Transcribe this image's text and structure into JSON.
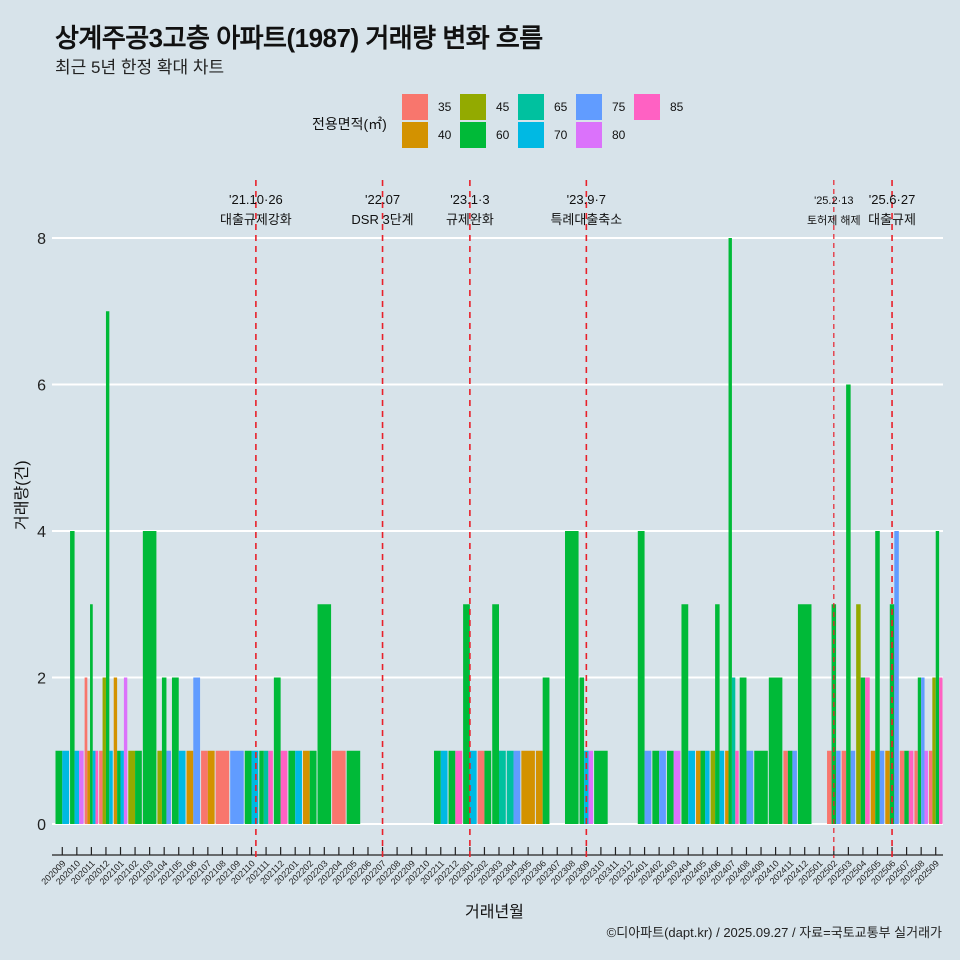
{
  "header": {
    "title": "상계주공3고층 아파트(1987) 거래량 변화 흐름",
    "subtitle": "최근 5년 한정 확대 차트"
  },
  "legend": {
    "title": "전용면적(㎡)",
    "items": [
      {
        "label": "35",
        "color": "#F8766D"
      },
      {
        "label": "40",
        "color": "#D39200"
      },
      {
        "label": "45",
        "color": "#93AA00"
      },
      {
        "label": "60",
        "color": "#00BA38"
      },
      {
        "label": "65",
        "color": "#00C19F"
      },
      {
        "label": "70",
        "color": "#00B9E3"
      },
      {
        "label": "75",
        "color": "#619CFF"
      },
      {
        "label": "80",
        "color": "#DB72FB"
      },
      {
        "label": "85",
        "color": "#FF61C3"
      }
    ]
  },
  "caption": "©디아파트(dapt.kr) / 2025.09.27 / 자료=국토교통부 실거래가",
  "chart_data": {
    "type": "bar",
    "title": "상계주공3고층 아파트(1987) 거래량 변화 흐름",
    "subtitle": "최근 5년 한정 확대 차트",
    "xlabel": "거래년월",
    "ylabel": "거래량(건)",
    "ylim": [
      0,
      8
    ],
    "yticks": [
      "0",
      "2",
      "4",
      "6",
      "8"
    ],
    "grid": true,
    "legend_position": "top",
    "categories": [
      "202009",
      "202010",
      "202011",
      "202012",
      "202101",
      "202102",
      "202103",
      "202104",
      "202105",
      "202106",
      "202107",
      "202108",
      "202109",
      "202110",
      "202111",
      "202112",
      "202201",
      "202202",
      "202203",
      "202204",
      "202205",
      "202206",
      "202207",
      "202208",
      "202209",
      "202210",
      "202211",
      "202212",
      "202301",
      "202302",
      "202303",
      "202304",
      "202305",
      "202306",
      "202307",
      "202308",
      "202309",
      "202310",
      "202311",
      "202312",
      "202401",
      "202402",
      "202403",
      "202404",
      "202405",
      "202406",
      "202407",
      "202408",
      "202409",
      "202410",
      "202411",
      "202412",
      "202501",
      "202502",
      "202503",
      "202504",
      "202505",
      "202506",
      "202507",
      "202508",
      "202509"
    ],
    "bars": [
      [
        [
          "60",
          1
        ],
        [
          "70",
          1
        ]
      ],
      [
        [
          "60",
          4
        ],
        [
          "70",
          1
        ],
        [
          "80",
          1
        ]
      ],
      [
        [
          "35",
          2
        ],
        [
          "40",
          1
        ],
        [
          "60",
          3
        ],
        [
          "70",
          1
        ],
        [
          "85",
          1
        ]
      ],
      [
        [
          "35",
          1
        ],
        [
          "45",
          2
        ],
        [
          "60",
          7
        ],
        [
          "70",
          1
        ]
      ],
      [
        [
          "40",
          2
        ],
        [
          "60",
          1
        ],
        [
          "70",
          1
        ],
        [
          "80",
          2
        ]
      ],
      [
        [
          "45",
          1
        ],
        [
          "60",
          1
        ]
      ],
      [
        [
          "60",
          4
        ]
      ],
      [
        [
          "45",
          1
        ],
        [
          "60",
          2
        ],
        [
          "75",
          1
        ]
      ],
      [
        [
          "60",
          2
        ],
        [
          "70",
          1
        ]
      ],
      [
        [
          "40",
          1
        ],
        [
          "75",
          2
        ]
      ],
      [
        [
          "35",
          1
        ],
        [
          "40",
          1
        ]
      ],
      [
        [
          "35",
          1
        ]
      ],
      [
        [
          "75",
          1
        ]
      ],
      [
        [
          "60",
          1
        ],
        [
          "70",
          1
        ]
      ],
      [
        [
          "60",
          1
        ],
        [
          "65",
          1
        ],
        [
          "85",
          1
        ]
      ],
      [
        [
          "60",
          2
        ],
        [
          "85",
          1
        ]
      ],
      [
        [
          "60",
          1
        ],
        [
          "70",
          1
        ]
      ],
      [
        [
          "40",
          1
        ],
        [
          "60",
          1
        ]
      ],
      [
        [
          "60",
          3
        ]
      ],
      [
        [
          "35",
          1
        ]
      ],
      [
        [
          "60",
          1
        ]
      ],
      [],
      [],
      [],
      [],
      [],
      [
        [
          "60",
          1
        ],
        [
          "70",
          1
        ]
      ],
      [
        [
          "60",
          1
        ],
        [
          "85",
          1
        ]
      ],
      [
        [
          "60",
          3
        ],
        [
          "70",
          1
        ]
      ],
      [
        [
          "35",
          1
        ],
        [
          "60",
          1
        ]
      ],
      [
        [
          "60",
          3
        ],
        [
          "65",
          1
        ]
      ],
      [
        [
          "65",
          1
        ],
        [
          "75",
          1
        ]
      ],
      [
        [
          "40",
          1
        ]
      ],
      [
        [
          "40",
          1
        ],
        [
          "60",
          2
        ]
      ],
      [],
      [
        [
          "60",
          4
        ]
      ],
      [
        [
          "60",
          2
        ],
        [
          "70",
          1
        ],
        [
          "80",
          1
        ]
      ],
      [
        [
          "60",
          1
        ]
      ],
      [],
      [],
      [
        [
          "60",
          4
        ],
        [
          "75",
          1
        ]
      ],
      [
        [
          "60",
          1
        ],
        [
          "75",
          1
        ]
      ],
      [
        [
          "60",
          1
        ],
        [
          "80",
          1
        ]
      ],
      [
        [
          "60",
          3
        ],
        [
          "70",
          1
        ]
      ],
      [
        [
          "40",
          1
        ],
        [
          "60",
          1
        ],
        [
          "70",
          1
        ]
      ],
      [
        [
          "45",
          1
        ],
        [
          "60",
          3
        ],
        [
          "70",
          1
        ]
      ],
      [
        [
          "40",
          1
        ],
        [
          "60",
          8
        ],
        [
          "65",
          2
        ],
        [
          "85",
          1
        ]
      ],
      [
        [
          "60",
          2
        ],
        [
          "75",
          1
        ]
      ],
      [
        [
          "60",
          1
        ]
      ],
      [
        [
          "60",
          2
        ]
      ],
      [
        [
          "35",
          1
        ],
        [
          "60",
          1
        ],
        [
          "75",
          1
        ]
      ],
      [
        [
          "60",
          3
        ]
      ],
      [],
      [
        [
          "35",
          1
        ],
        [
          "60",
          3
        ],
        [
          "75",
          1
        ]
      ],
      [
        [
          "35",
          1
        ],
        [
          "60",
          6
        ],
        [
          "75",
          1
        ]
      ],
      [
        [
          "45",
          3
        ],
        [
          "60",
          2
        ],
        [
          "85",
          2
        ]
      ],
      [
        [
          "40",
          1
        ],
        [
          "60",
          4
        ],
        [
          "75",
          1
        ]
      ],
      [
        [
          "40",
          1
        ],
        [
          "60",
          3
        ],
        [
          "75",
          4
        ]
      ],
      [
        [
          "35",
          1
        ],
        [
          "60",
          1
        ],
        [
          "85",
          1
        ]
      ],
      [
        [
          "35",
          1
        ],
        [
          "60",
          2
        ],
        [
          "75",
          2
        ],
        [
          "80",
          1
        ]
      ],
      [
        [
          "35",
          1
        ],
        [
          "45",
          2
        ],
        [
          "60",
          4
        ],
        [
          "85",
          2
        ]
      ]
    ],
    "events": [
      {
        "date": "'21.10·26",
        "label": "대출규제강화",
        "month": "202110",
        "offset": 0.3,
        "style": "dashed"
      },
      {
        "date": "'22.07",
        "label": "DSR 3단계",
        "month": "202207",
        "offset": 0.0,
        "style": "dashed"
      },
      {
        "date": "'23.1·3",
        "label": "규제완화",
        "month": "202301",
        "offset": 0.0,
        "style": "dashed"
      },
      {
        "date": "'23.9·7",
        "label": "특례대출축소",
        "month": "202309",
        "offset": 0.0,
        "style": "dashed"
      },
      {
        "date": "'25.2·13",
        "label": "토허제 해제",
        "month": "202502",
        "offset": 0.0,
        "style": "dotted"
      },
      {
        "date": "'25.6·27",
        "label": "대출규제",
        "month": "202506",
        "offset": 0.0,
        "style": "dashed"
      }
    ]
  }
}
